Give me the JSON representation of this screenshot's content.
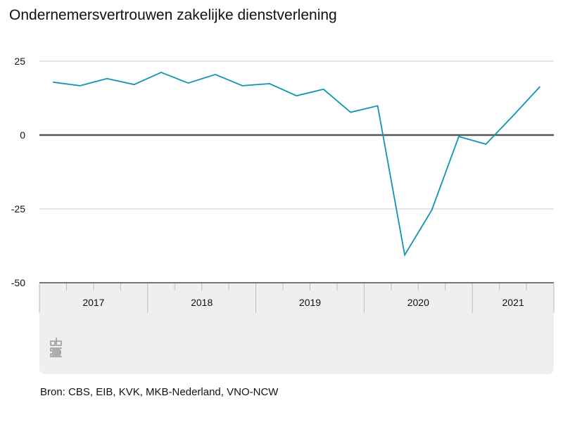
{
  "chart_data": {
    "type": "line",
    "title": "Ondernemersvertrouwen zakelijke dienstverlening",
    "source": "Bron: CBS, EIB, KVK, MKB-Nederland, VNO-NCW",
    "xlabel": "",
    "ylabel": "",
    "ylim": [
      -50,
      25
    ],
    "yticks": [
      "25",
      "0",
      "-25",
      "-50"
    ],
    "ytick_values": [
      25,
      0,
      -25,
      -50
    ],
    "years": [
      "2017",
      "2018",
      "2019",
      "2020",
      "2021"
    ],
    "x": [
      "2017 Q1",
      "2017 Q2",
      "2017 Q3",
      "2017 Q4",
      "2018 Q1",
      "2018 Q2",
      "2018 Q3",
      "2018 Q4",
      "2019 Q1",
      "2019 Q2",
      "2019 Q3",
      "2019 Q4",
      "2020 Q1",
      "2020 Q2",
      "2020 Q3",
      "2020 Q4",
      "2021 Q1",
      "2021 Q2",
      "2021 Q3"
    ],
    "series": [
      {
        "name": "Ondernemersvertrouwen",
        "color": "#0f93b4",
        "values": [
          17.9,
          16.7,
          19.1,
          17.1,
          21.2,
          17.6,
          20.5,
          16.7,
          17.4,
          13.3,
          15.5,
          7.7,
          9.9,
          -40.6,
          -25.4,
          -0.5,
          -3.1,
          6.5,
          16.4
        ]
      }
    ],
    "grid": true,
    "logo": "cbs"
  }
}
